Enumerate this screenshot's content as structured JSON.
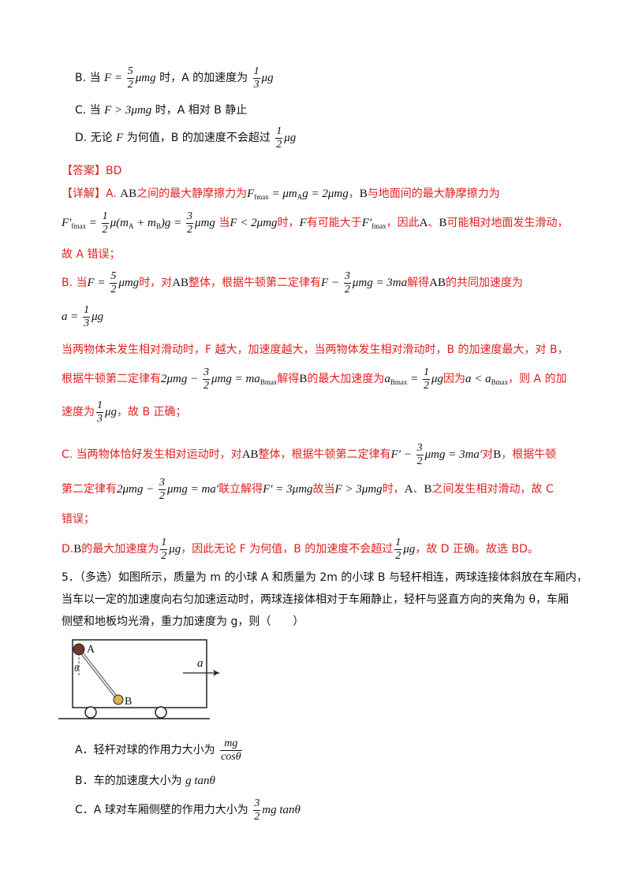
{
  "options_q4": {
    "b_prefix": "B. 当",
    "b_cond": "F = (5/2)μmg",
    "b_mid": "时，A 的加速度为",
    "b_val": "(1/3)μg",
    "c_prefix": "C. 当",
    "c_cond": "F > 3μmg",
    "c_text": "时，A 相对 B 静止",
    "d_prefix": "D. 无论",
    "d_mid": "为何值，B 的加速度不会超过",
    "d_val": "(1/2)μg"
  },
  "answer": "【答案】BD",
  "explanation": {
    "l1_a": "【详解】A.",
    "l1_b": "之间的最大静摩擦力为",
    "l1_c": "，",
    "l1_d": "与地面间的最大静摩擦力为",
    "l2_a": "当",
    "l2_b": "时，",
    "l2_c": "有可能大于",
    "l2_d": "，因此",
    "l2_e": "可能相对地面发生滑动，",
    "l3": "故 A 错误；",
    "l4_a": "B. 当",
    "l4_b": "时，对",
    "l4_c": "整体，根据牛顿第二定律有",
    "l4_d": "解得",
    "l4_e": "的共同加速度为",
    "l6": "当两物体未发生相对滑动时，F 越大，加速度越大，当两物体发生相对滑动时，B 的加速度最大，对 B，",
    "l7_a": "根据牛顿第二定律有",
    "l7_b": "解得",
    "l7_c": "的最大加速度为",
    "l7_d": "因为",
    "l7_e": "，则 A 的加",
    "l8_a": "速度为",
    "l8_b": "，故 B 正确；",
    "l9_a": "C. 当两物体恰好发生相对运动时，对",
    "l9_b": "整体，根据牛顿第二定律有",
    "l9_c": "对",
    "l9_d": "，根据牛顿",
    "l10_a": "第二定律有",
    "l10_b": "联立解得",
    "l10_c": "故当",
    "l10_d": "时，",
    "l10_e": "、",
    "l10_f": "之间发生相对滑动，故 C",
    "l11": "错误；",
    "l12_a": "D.",
    "l12_b": "的最大加速度为",
    "l12_c": "，因此无论 F 为何值，B 的加速度不会超过",
    "l12_d": "，故 D 正确。故选 BD。"
  },
  "question5": {
    "line1": "5．（多选）如图所示，质量为 m 的小球 A 和质量为 2m 的小球 B 与轻杆相连，两球连接体斜放在车厢内，",
    "line2": "当车以一定的加速度向右匀加速运动时，两球连接体相对于车厢静止，轻杆与竖直方向的夹角为 θ，车厢",
    "line3": "侧壁和地板均光滑，重力加速度为 g，则（　　）",
    "figure": {
      "label_A": "A",
      "label_B": "B",
      "label_theta": "θ",
      "label_a": "a"
    },
    "optA_prefix": "A．轻杆对球的作用力大小为",
    "optB_prefix": "B．车的加速度大小为",
    "optB_val": "g tanθ",
    "optC_prefix": "C．A 球对车厢侧壁的作用力大小为",
    "optC_val": "(3/2)mg tanθ"
  }
}
